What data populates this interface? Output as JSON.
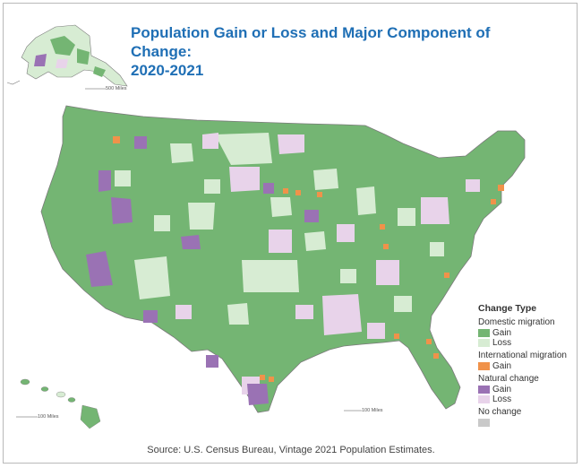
{
  "title": {
    "line1": "Population Gain or Loss and Major Component of Change:",
    "line2": "2020-2021"
  },
  "legend": {
    "title": "Change Type",
    "domestic": {
      "header": "Domestic migration",
      "gain": "Gain",
      "loss": "Loss"
    },
    "international": {
      "header": "International migration",
      "gain": "Gain"
    },
    "natural": {
      "header": "Natural change",
      "gain": "Gain",
      "loss": "Loss"
    },
    "nochange": {
      "header": "No change"
    }
  },
  "scales": {
    "alaska": "500 Miles",
    "hawaii": "100 Miles",
    "conus": "100 Miles"
  },
  "source": "Source: U.S. Census Bureau, Vintage 2021 Population Estimates.",
  "colors": {
    "title": "#1f6fb5",
    "domestic_gain": "#74b573",
    "domestic_loss": "#d7ecd3",
    "international_gain": "#f0924a",
    "natural_gain": "#9a72b4",
    "natural_loss": "#e8d3ea",
    "no_change": "#c9c9c9"
  }
}
